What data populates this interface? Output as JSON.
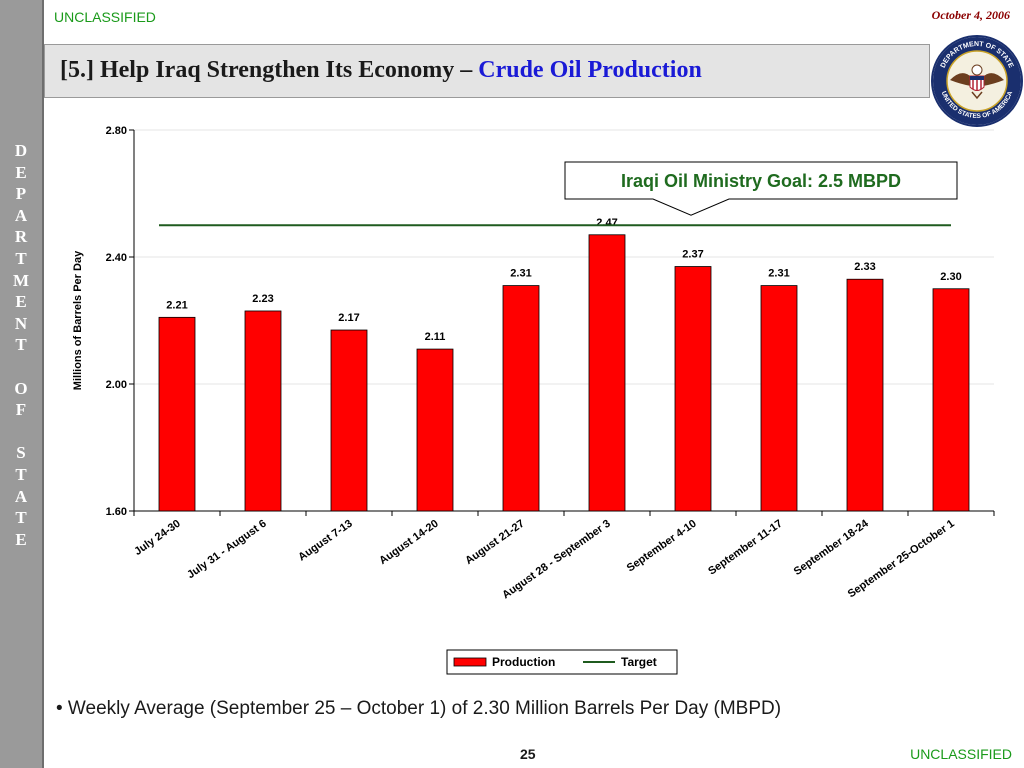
{
  "header": {
    "classification": "UNCLASSIFIED",
    "date": "October 4, 2006",
    "title_prefix": "[5.] Help Iraq Strengthen Its Economy – ",
    "title_highlight": "Crude Oil Production"
  },
  "sidebar": {
    "text": "DEPARTMENT OF STATE"
  },
  "seal": {
    "icon": "department-of-state-seal-icon",
    "top_text": "DEPARTMENT OF STATE",
    "bottom_text": "UNITED STATES OF AMERICA"
  },
  "chart_data": {
    "type": "bar",
    "categories": [
      "July 24-30",
      "July 31 - August 6",
      "August 7-13",
      "August 14-20",
      "August 21-27",
      "August 28 - September 3",
      "September 4-10",
      "September 11-17",
      "September 18-24",
      "September 25-October 1"
    ],
    "series": [
      {
        "name": "Production",
        "values": [
          2.21,
          2.23,
          2.17,
          2.11,
          2.31,
          2.47,
          2.37,
          2.31,
          2.33,
          2.3
        ],
        "color": "#ff0000"
      },
      {
        "name": "Target",
        "type": "line",
        "values": [
          2.5,
          2.5,
          2.5,
          2.5,
          2.5,
          2.5,
          2.5,
          2.5,
          2.5,
          2.5
        ],
        "color": "#1f5b1f"
      }
    ],
    "data_labels": [
      "2.21",
      "2.23",
      "2.17",
      "2.11",
      "2.31",
      "2.47",
      "2.37",
      "2.31",
      "2.33",
      "2.30"
    ],
    "ylabel": "Millions of Barrels Per Day",
    "ylim": [
      1.6,
      2.8
    ],
    "yticks": [
      "1.60",
      "2.00",
      "2.40",
      "2.80"
    ],
    "ytick_values": [
      1.6,
      2.0,
      2.4,
      2.8
    ],
    "grid": "horizontal",
    "legend": "bottom-center",
    "callout": "Iraqi Oil Ministry Goal:  2.5 MBPD"
  },
  "footer": {
    "bullet": "• Weekly Average (September 25 – October 1) of 2.30 Million Barrels Per Day (MBPD)",
    "page_number": "25",
    "classification": "UNCLASSIFIED"
  }
}
